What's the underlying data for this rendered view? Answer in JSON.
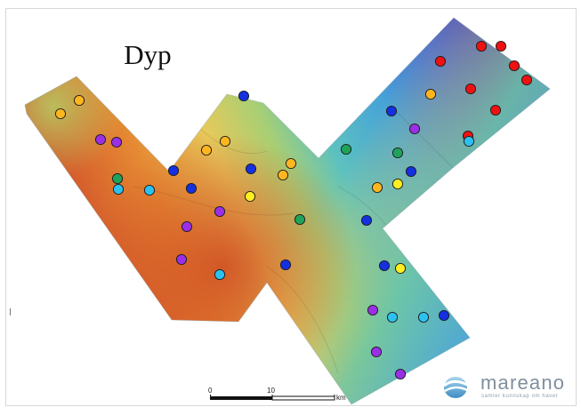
{
  "title": "Dyp",
  "scalebar": {
    "labels": [
      "0",
      "10",
      "km"
    ]
  },
  "logo": {
    "name": "mareano",
    "tagline": "samler kunnskap om havet"
  },
  "colors": {
    "red": "#ee1111",
    "orange": "#ffb61e",
    "yellow": "#ffee22",
    "green": "#1fa35c",
    "light_blue": "#2cc1f0",
    "blue": "#1530e0",
    "purple": "#9a2fe6"
  },
  "legend_note": "",
  "stations": [
    {
      "category": "orange"
    },
    {
      "category": "orange"
    },
    {
      "category": "purple"
    },
    {
      "category": "purple"
    },
    {
      "category": "green"
    },
    {
      "category": "light_blue"
    },
    {
      "category": "light_blue"
    },
    {
      "category": "blue"
    },
    {
      "category": "blue"
    },
    {
      "category": "blue"
    },
    {
      "category": "orange"
    },
    {
      "category": "orange"
    },
    {
      "category": "blue"
    },
    {
      "category": "orange"
    },
    {
      "category": "orange"
    },
    {
      "category": "yellow"
    },
    {
      "category": "purple"
    },
    {
      "category": "purple"
    },
    {
      "category": "purple"
    },
    {
      "category": "light_blue"
    },
    {
      "category": "green"
    },
    {
      "category": "blue"
    },
    {
      "category": "green"
    },
    {
      "category": "blue"
    },
    {
      "category": "orange"
    },
    {
      "category": "yellow"
    },
    {
      "category": "green"
    },
    {
      "category": "blue"
    },
    {
      "category": "purple"
    },
    {
      "category": "blue"
    },
    {
      "category": "orange"
    },
    {
      "category": "red"
    },
    {
      "category": "light_blue"
    },
    {
      "category": "red"
    },
    {
      "category": "red"
    },
    {
      "category": "red"
    },
    {
      "category": "red"
    },
    {
      "category": "red"
    },
    {
      "category": "red"
    },
    {
      "category": "red"
    },
    {
      "category": "blue"
    },
    {
      "category": "yellow"
    },
    {
      "category": "purple"
    },
    {
      "category": "light_blue"
    },
    {
      "category": "light_blue"
    },
    {
      "category": "blue"
    },
    {
      "category": "purple"
    },
    {
      "category": "purple"
    }
  ]
}
